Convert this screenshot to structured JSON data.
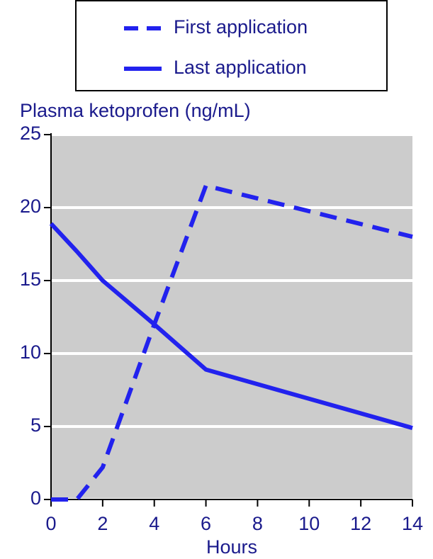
{
  "chart_data": {
    "type": "line",
    "y_axis_label": "Plasma ketoprofen (ng/mL)",
    "x_axis_label": "Hours",
    "x": [
      0,
      1,
      2,
      4,
      6,
      14
    ],
    "series": [
      {
        "name": "First application",
        "color": "#2222ee",
        "dash": true,
        "values": [
          0,
          0,
          2.2,
          12,
          21.5,
          18
        ]
      },
      {
        "name": "Last application",
        "color": "#2222ee",
        "dash": false,
        "values": [
          18.9,
          17,
          15,
          12,
          8.9,
          4.9
        ]
      }
    ],
    "xlim": [
      0,
      14
    ],
    "xticks": [
      0,
      2,
      4,
      6,
      8,
      10,
      12,
      14
    ],
    "ylim": [
      0,
      25
    ],
    "yticks": [
      0,
      5,
      10,
      15,
      20,
      25
    ],
    "grid": true,
    "legend": "top"
  }
}
